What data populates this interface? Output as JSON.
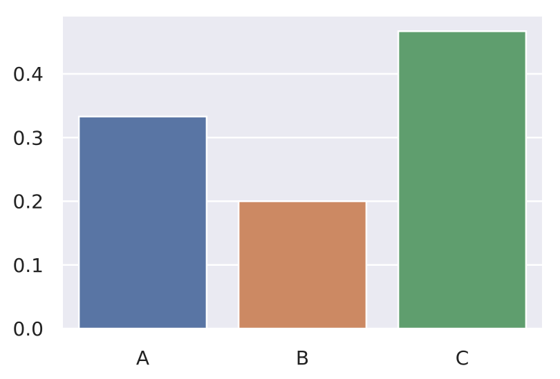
{
  "chart_data": {
    "type": "bar",
    "title": "",
    "xlabel": "",
    "ylabel": "",
    "categories": [
      "A",
      "B",
      "C"
    ],
    "values": [
      0.333,
      0.2,
      0.467
    ],
    "ylim": [
      0,
      0.49
    ],
    "yticks": [
      "0.0",
      "0.1",
      "0.2",
      "0.3",
      "0.4"
    ],
    "grid": true,
    "legend": "none",
    "colors": [
      "#5975a4",
      "#cc8963",
      "#5f9e6e"
    ],
    "background": "#eaeaf2"
  }
}
